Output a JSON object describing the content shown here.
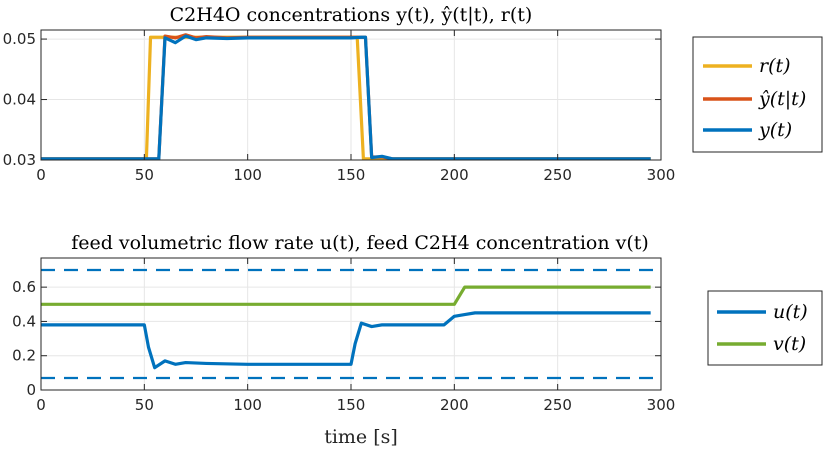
{
  "chart_data": [
    {
      "type": "line",
      "title": "C2H4O concentrations y(t), ŷ(t|t), r(t)",
      "xlabel": "",
      "ylabel": "",
      "xlim": [
        0,
        300
      ],
      "ylim": [
        0.03,
        0.0515
      ],
      "xticks": [
        0,
        50,
        100,
        150,
        200,
        250,
        300
      ],
      "xtick_labels": [
        "0",
        "50",
        "100",
        "150",
        "200",
        "250",
        "300"
      ],
      "yticks": [
        0.03,
        0.04,
        0.05
      ],
      "ytick_labels": [
        "0.03",
        "0.04",
        "0.05"
      ],
      "grid": true,
      "legend_position": "right",
      "series": [
        {
          "name": "r(t)",
          "color": "#EDB120",
          "x": [
            0,
            51,
            53,
            55,
            60,
            65,
            70,
            150,
            153,
            156,
            160,
            170,
            200,
            295
          ],
          "y": [
            0.0302,
            0.0302,
            0.0503,
            0.0503,
            0.0503,
            0.0503,
            0.0503,
            0.0503,
            0.0503,
            0.0302,
            0.0302,
            0.0302,
            0.0302,
            0.0302
          ]
        },
        {
          "name": "ŷ(t|t)",
          "color": "#D95319",
          "x": [
            0,
            50,
            55,
            57,
            60,
            65,
            70,
            75,
            80,
            90,
            100,
            150,
            155,
            157,
            160,
            165,
            170,
            180,
            200,
            295
          ],
          "y": [
            0.0302,
            0.0302,
            0.0302,
            0.0302,
            0.0505,
            0.0502,
            0.0507,
            0.0502,
            0.0504,
            0.0502,
            0.0503,
            0.0503,
            0.0503,
            0.0503,
            0.0305,
            0.0305,
            0.0302,
            0.0302,
            0.0302,
            0.0302
          ]
        },
        {
          "name": "y(t)",
          "color": "#0072BD",
          "x": [
            0,
            50,
            55,
            57,
            60,
            65,
            70,
            75,
            80,
            90,
            100,
            150,
            155,
            157,
            160,
            165,
            170,
            180,
            200,
            295
          ],
          "y": [
            0.0302,
            0.0302,
            0.0302,
            0.0302,
            0.0502,
            0.0494,
            0.0505,
            0.0499,
            0.0502,
            0.0501,
            0.0502,
            0.0502,
            0.0503,
            0.0503,
            0.0304,
            0.0306,
            0.0302,
            0.0302,
            0.0302,
            0.0302
          ]
        }
      ]
    },
    {
      "type": "line",
      "title": "feed volumetric flow rate u(t), feed C2H4 concentration v(t)",
      "xlabel": "time [s]",
      "ylabel": "",
      "xlim": [
        0,
        300
      ],
      "ylim": [
        0,
        0.77
      ],
      "xticks": [
        0,
        50,
        100,
        150,
        200,
        250,
        300
      ],
      "xtick_labels": [
        "0",
        "50",
        "100",
        "150",
        "200",
        "250",
        "300"
      ],
      "yticks": [
        0,
        0.2,
        0.4,
        0.6
      ],
      "ytick_labels": [
        "0",
        "0.2",
        "0.4",
        "0.6"
      ],
      "grid": true,
      "legend_position": "right",
      "series": [
        {
          "name": "u(t)",
          "color": "#0072BD",
          "x": [
            0,
            50,
            52,
            55,
            60,
            65,
            70,
            80,
            100,
            150,
            152,
            155,
            160,
            165,
            180,
            195,
            200,
            205,
            210,
            220,
            295
          ],
          "y": [
            0.38,
            0.38,
            0.25,
            0.13,
            0.17,
            0.15,
            0.16,
            0.155,
            0.15,
            0.15,
            0.27,
            0.39,
            0.37,
            0.38,
            0.38,
            0.38,
            0.43,
            0.44,
            0.45,
            0.45,
            0.45
          ]
        },
        {
          "name": "v(t)",
          "color": "#77AC30",
          "x": [
            0,
            200,
            205,
            295
          ],
          "y": [
            0.5,
            0.5,
            0.6,
            0.6
          ]
        }
      ],
      "bounds": [
        {
          "name": "u upper bound",
          "color": "#0072BD",
          "y": 0.7
        },
        {
          "name": "u lower bound",
          "color": "#0072BD",
          "y": 0.07
        }
      ]
    }
  ]
}
